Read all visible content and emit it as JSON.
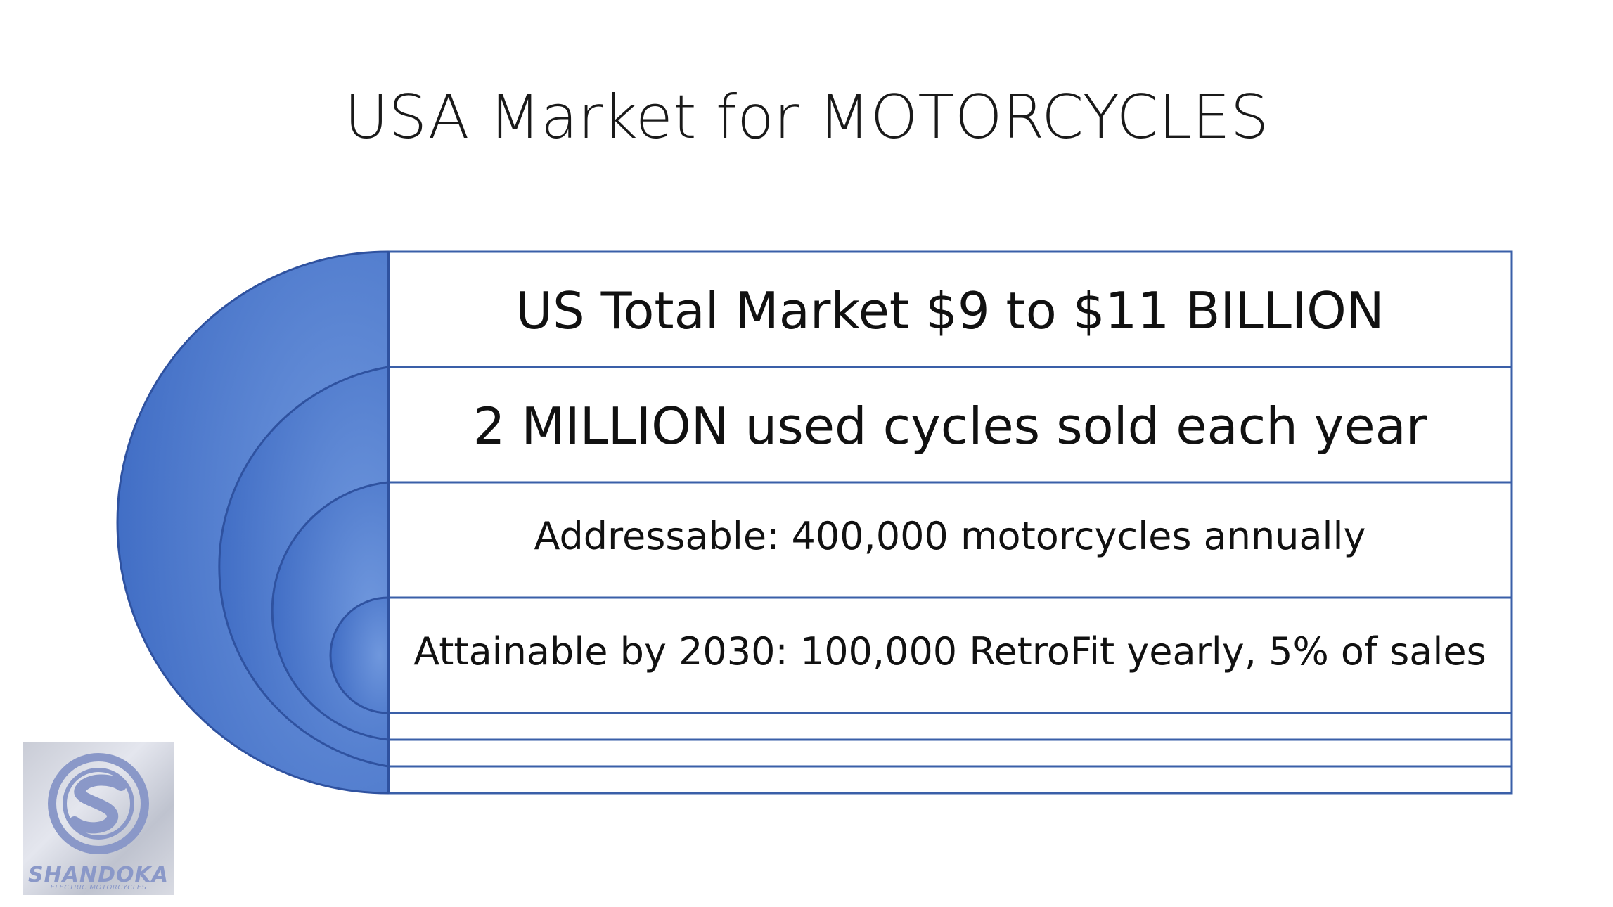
{
  "slide": {
    "title": "USA Market for MOTORCYCLES"
  },
  "funnel": {
    "rows": [
      {
        "text": "US Total Market $9 to $11 BILLION"
      },
      {
        "text": "2 MILLION used cycles sold each year"
      },
      {
        "text": "Addressable: 400,000 motorcycles annually"
      },
      {
        "text": "Attainable by 2030: 100,000 RetroFit yearly, 5% of sales"
      }
    ],
    "colors": {
      "fill": "#4a79cf",
      "fill_light": "#6f97dd",
      "line": "#3a5fa8"
    }
  },
  "logo": {
    "name": "SHANDOKA",
    "subtitle": "ELECTRIC MOTORCYCLES",
    "icon": "shandoka-s-emblem-icon",
    "color": "#8a98c8"
  }
}
